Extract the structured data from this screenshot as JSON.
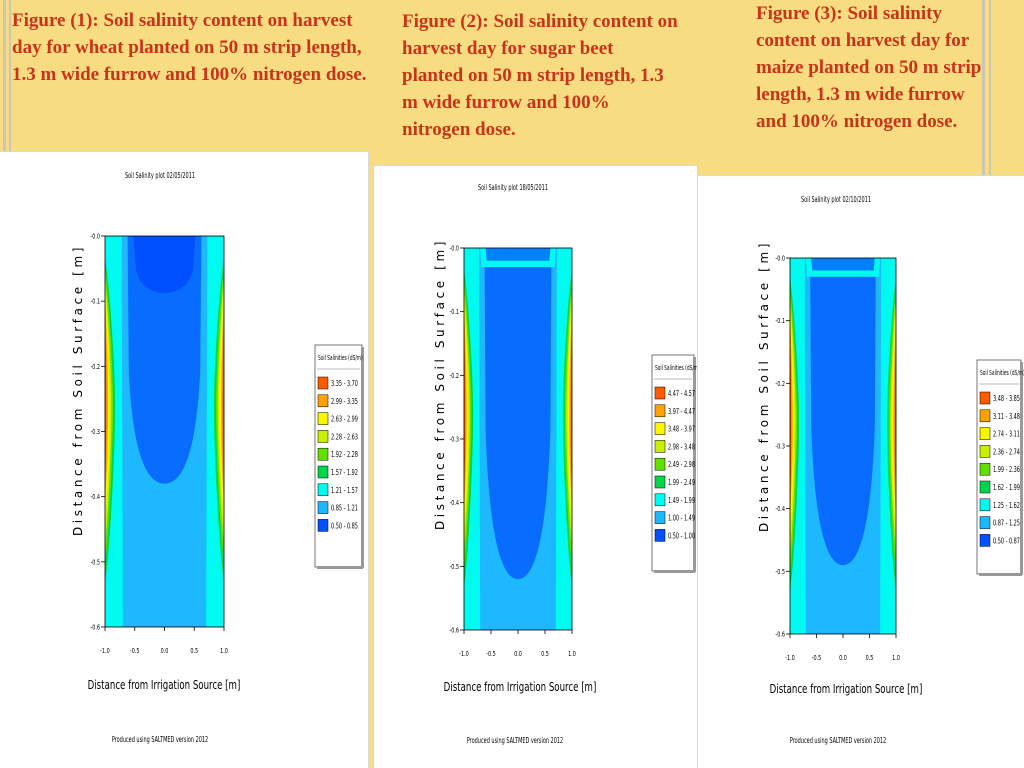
{
  "captions": [
    "Figure (1): Soil salinity content on harvest day for wheat planted on 50 m strip length, 1.3 m wide furrow and 100% nitrogen dose.",
    "Figure (2): Soil salinity content on harvest day for sugar beet planted on 50 m strip length, 1.3 m wide furrow and 100% nitrogen dose.",
    "Figure (3): Soil salinity content on harvest day for maize planted on 50 m strip length, 1.3 m wide furrow and 100% nitrogen dose."
  ],
  "chart_data": [
    {
      "type": "heatmap",
      "title": "Soil Salinity plot 02/05/2011",
      "xlabel": "Distance from Irrigation Source [m]",
      "ylabel": "Distance from Soil Surface [m]",
      "xlim": [
        -1.0,
        1.0
      ],
      "ylim": [
        -0.6,
        0.0
      ],
      "x_ticks": [
        "-1.0",
        "-0.5",
        "0.0",
        "0.5",
        "1.0"
      ],
      "y_ticks": [
        "-0.0",
        "-0.1",
        "-0.2",
        "-0.3",
        "-0.4",
        "-0.5",
        "-0.6"
      ],
      "legend_title": "Soil Salinities (dS/m)",
      "legend_placement": "right",
      "legend": [
        {
          "range": "3.35 - 3.70",
          "color": "#ff5a00"
        },
        {
          "range": "2.99 - 3.35",
          "color": "#ffa200"
        },
        {
          "range": "2.63 - 2.99",
          "color": "#fbf500"
        },
        {
          "range": "2.28 - 2.63",
          "color": "#c8f000"
        },
        {
          "range": "1.92 - 2.28",
          "color": "#64e000"
        },
        {
          "range": "1.57 - 1.92",
          "color": "#00d64a"
        },
        {
          "range": "1.21 - 1.57",
          "color": "#00faf0"
        },
        {
          "range": "0.85 - 1.21",
          "color": "#1eb8ff"
        },
        {
          "range": "0.50 - 0.85",
          "color": "#0050ff"
        }
      ],
      "footer": "Produced using SALTMED version 2012"
    },
    {
      "type": "heatmap",
      "title": "Soil Salinity plot 18/05/2011",
      "xlabel": "Distance from Irrigation Source [m]",
      "ylabel": "Distance from Soil Surface [m]",
      "xlim": [
        -1.0,
        1.0
      ],
      "ylim": [
        -0.6,
        0.0
      ],
      "x_ticks": [
        "-1.0",
        "-0.5",
        "0.0",
        "0.5",
        "1.0"
      ],
      "y_ticks": [
        "-0.0",
        "-0.1",
        "-0.2",
        "-0.3",
        "-0.4",
        "-0.5",
        "-0.6"
      ],
      "legend_title": "Soil Salinities (dS/m)",
      "legend_placement": "right",
      "legend": [
        {
          "range": "4.47 - 4.57",
          "color": "#ff5a00"
        },
        {
          "range": "3.97 - 4.47",
          "color": "#ffa200"
        },
        {
          "range": "3.48 - 3.97",
          "color": "#fbf500"
        },
        {
          "range": "2.98 - 3.48",
          "color": "#c8f000"
        },
        {
          "range": "2.49 - 2.98",
          "color": "#64e000"
        },
        {
          "range": "1.99 - 2.49",
          "color": "#00d64a"
        },
        {
          "range": "1.49 - 1.99",
          "color": "#00faf0"
        },
        {
          "range": "1.00 - 1.49",
          "color": "#1eb8ff"
        },
        {
          "range": "0.50 - 1.00",
          "color": "#0050ff"
        }
      ],
      "footer": "Produced using SALTMED version 2012"
    },
    {
      "type": "heatmap",
      "title": "Soil Salinity plot 02/10/2011",
      "xlabel": "Distance from Irrigation Source [m]",
      "ylabel": "Distance from Soil Surface [m]",
      "xlim": [
        -1.0,
        1.0
      ],
      "ylim": [
        -0.6,
        0.0
      ],
      "x_ticks": [
        "-1.0",
        "-0.5",
        "0.0",
        "0.5",
        "1.0"
      ],
      "y_ticks": [
        "-0.0",
        "-0.1",
        "-0.2",
        "-0.3",
        "-0.4",
        "-0.5",
        "-0.6"
      ],
      "legend_title": "Soil Salinities (dS/m)",
      "legend_placement": "right",
      "legend": [
        {
          "range": "3.48 - 3.85",
          "color": "#ff5a00"
        },
        {
          "range": "3.11 - 3.48",
          "color": "#ffa200"
        },
        {
          "range": "2.74 - 3.11",
          "color": "#fbf500"
        },
        {
          "range": "2.36 - 2.74",
          "color": "#c8f000"
        },
        {
          "range": "1.99 - 2.36",
          "color": "#64e000"
        },
        {
          "range": "1.62 - 1.99",
          "color": "#00d64a"
        },
        {
          "range": "1.25 - 1.62",
          "color": "#00faf0"
        },
        {
          "range": "0.87 - 1.25",
          "color": "#1eb8ff"
        },
        {
          "range": "0.50 - 0.87",
          "color": "#0050ff"
        }
      ],
      "footer": "Produced using SALTMED version 2012"
    }
  ]
}
